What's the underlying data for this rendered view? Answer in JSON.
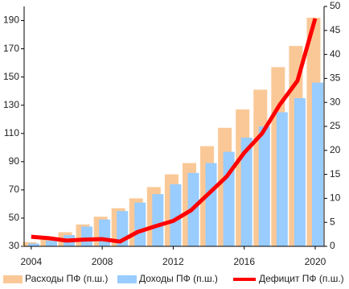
{
  "chart_data": {
    "type": "bar+line",
    "x": [
      2004,
      2005,
      2006,
      2007,
      2008,
      2009,
      2010,
      2011,
      2012,
      2013,
      2014,
      2015,
      2016,
      2017,
      2018,
      2019,
      2020
    ],
    "xlim": [
      2003.6,
      2020.5
    ],
    "xticks": [
      2004,
      2008,
      2012,
      2016,
      2020
    ],
    "ylim": [
      30,
      200
    ],
    "yticks": [
      30,
      50,
      70,
      90,
      110,
      130,
      150,
      170,
      190
    ],
    "y2lim": [
      0,
      50
    ],
    "y2ticks": [
      0,
      5,
      10,
      15,
      20,
      25,
      30,
      35,
      40,
      45,
      50
    ],
    "series": [
      {
        "name": "Расходы ПФ (п.ш.)",
        "color": "#fac896",
        "kind": "bar",
        "values": [
          33,
          36,
          40,
          45.5,
          51,
          57,
          64,
          72,
          81,
          89,
          101,
          114,
          127,
          141,
          157,
          172,
          192
        ]
      },
      {
        "name": "Доходы ПФ (п.ш.)",
        "color": "#99ccff",
        "kind": "bar",
        "values": [
          32,
          34,
          38,
          44,
          49,
          55,
          61,
          67,
          74,
          82,
          89,
          97,
          107,
          115,
          125,
          135,
          146
        ]
      },
      {
        "name": "Дефицит ПФ (п.ш.)",
        "color": "#ff0000",
        "kind": "line",
        "axis": "y2",
        "values": [
          2,
          1.7,
          1.2,
          1.4,
          1.5,
          1.0,
          3.0,
          4.2,
          5.3,
          7.5,
          11,
          14.5,
          19.5,
          23.5,
          29.5,
          34.5,
          47.5
        ]
      }
    ]
  }
}
